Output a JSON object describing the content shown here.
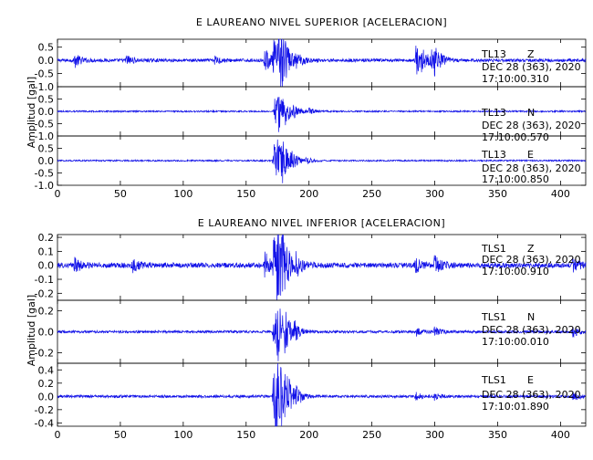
{
  "chart_data": [
    {
      "type": "line",
      "title": "E LAUREANO NIVEL SUPERIOR [ACELERACION]",
      "ylabel": "Amplitud [gal]",
      "xlabel": "",
      "xlim": [
        0,
        420
      ],
      "xticks": [
        "0",
        "50",
        "100",
        "150",
        "200",
        "250",
        "300",
        "350",
        "400"
      ],
      "color": "#1010e8",
      "grid": false,
      "panels": [
        {
          "station": "TL13",
          "component": "Z",
          "date": "DEC 28 (363), 2020",
          "time": "17:10:00.310",
          "ylim": [
            -1.0,
            0.8
          ],
          "yticks": [
            "0.5",
            "0.0",
            "-0.5",
            "-1.0"
          ],
          "noise": 0.06,
          "peaks": [
            {
              "t": 14,
              "a": 0.25
            },
            {
              "t": 55,
              "a": 0.2
            },
            {
              "t": 125,
              "a": 0.15
            },
            {
              "t": 165,
              "a": 0.45
            },
            {
              "t": 172,
              "a": 0.75
            },
            {
              "t": 176,
              "a": -1.0
            },
            {
              "t": 178,
              "a": 0.7
            },
            {
              "t": 190,
              "a": 0.25
            },
            {
              "t": 285,
              "a": -0.6
            },
            {
              "t": 290,
              "a": 0.3
            },
            {
              "t": 298,
              "a": 0.45
            },
            {
              "t": 300,
              "a": -0.4
            }
          ]
        },
        {
          "station": "TL13",
          "component": "N",
          "date": "DEC 28 (363), 2020",
          "time": "17:10:00.570",
          "ylim": [
            -1.0,
            1.0
          ],
          "yticks": [
            "0.5",
            "0.0",
            "-0.5",
            "-1.0"
          ],
          "noise": 0.03,
          "peaks": [
            {
              "t": 173,
              "a": 0.6
            },
            {
              "t": 176,
              "a": -0.55
            },
            {
              "t": 180,
              "a": 0.4
            },
            {
              "t": 188,
              "a": 0.25
            },
            {
              "t": 200,
              "a": 0.12
            }
          ]
        },
        {
          "station": "TL13",
          "component": "E",
          "date": "DEC 28 (363), 2020",
          "time": "17:10:00.850",
          "ylim": [
            -1.0,
            1.0
          ],
          "yticks": [
            "0.5",
            "0.0",
            "-0.5",
            "-1.0"
          ],
          "noise": 0.03,
          "peaks": [
            {
              "t": 172,
              "a": 0.7
            },
            {
              "t": 175,
              "a": -0.65
            },
            {
              "t": 179,
              "a": 0.5
            },
            {
              "t": 186,
              "a": 0.3
            },
            {
              "t": 198,
              "a": 0.12
            }
          ]
        }
      ]
    },
    {
      "type": "line",
      "title": "E LAUREANO NIVEL INFERIOR [ACELERACION]",
      "ylabel": "Amplitud [gal]",
      "xlabel": "",
      "xlim": [
        0,
        420
      ],
      "xticks": [
        "0",
        "50",
        "100",
        "150",
        "200",
        "250",
        "300",
        "350",
        "400"
      ],
      "color": "#1010e8",
      "grid": false,
      "panels": [
        {
          "station": "TLS1",
          "component": "Z",
          "date": "DEC 28 (363), 2020",
          "time": "17:10:00.910",
          "ylim": [
            -0.25,
            0.22
          ],
          "yticks": [
            "0.2",
            "0.1",
            "0.0",
            "-0.1",
            "-0.2"
          ],
          "noise": 0.018,
          "peaks": [
            {
              "t": 14,
              "a": 0.05
            },
            {
              "t": 60,
              "a": 0.04
            },
            {
              "t": 165,
              "a": 0.09
            },
            {
              "t": 172,
              "a": 0.2
            },
            {
              "t": 175,
              "a": -0.24
            },
            {
              "t": 179,
              "a": 0.15
            },
            {
              "t": 190,
              "a": 0.07
            },
            {
              "t": 285,
              "a": 0.05
            },
            {
              "t": 300,
              "a": 0.06
            },
            {
              "t": 410,
              "a": 0.05
            }
          ]
        },
        {
          "station": "TLS1",
          "component": "N",
          "date": "DEC 28 (363), 2020",
          "time": "17:10:00.010",
          "ylim": [
            -0.3,
            0.3
          ],
          "yticks": [
            "0.2",
            "0.0",
            "-0.2"
          ],
          "noise": 0.012,
          "peaks": [
            {
              "t": 172,
              "a": 0.28
            },
            {
              "t": 175,
              "a": -0.2
            },
            {
              "t": 180,
              "a": 0.15
            },
            {
              "t": 188,
              "a": 0.08
            },
            {
              "t": 285,
              "a": 0.04
            },
            {
              "t": 300,
              "a": 0.04
            },
            {
              "t": 410,
              "a": 0.05
            }
          ]
        },
        {
          "station": "TLS1",
          "component": "E",
          "date": "DEC 28 (363), 2020",
          "time": "17:10:01.890",
          "ylim": [
            -0.45,
            0.5
          ],
          "yticks": [
            "0.4",
            "0.2",
            "0.0",
            "-0.2",
            "-0.4"
          ],
          "noise": 0.02,
          "peaks": [
            {
              "t": 172,
              "a": -0.42
            },
            {
              "t": 174,
              "a": 0.45
            },
            {
              "t": 178,
              "a": -0.25
            },
            {
              "t": 182,
              "a": 0.2
            },
            {
              "t": 190,
              "a": 0.1
            },
            {
              "t": 285,
              "a": 0.05
            },
            {
              "t": 300,
              "a": 0.05
            },
            {
              "t": 410,
              "a": 0.06
            }
          ]
        }
      ]
    }
  ]
}
